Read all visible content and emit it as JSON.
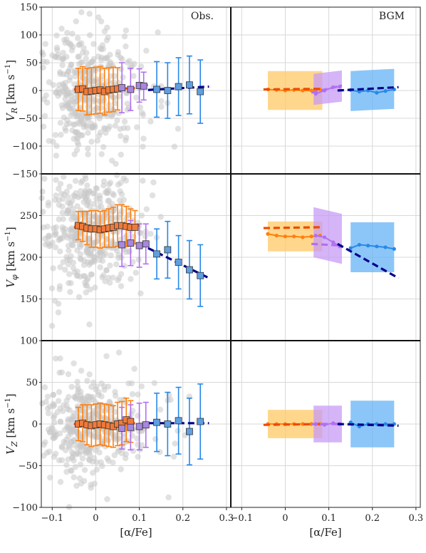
{
  "chart_data": {
    "type": "scatter",
    "panel_tags": [
      "Obs.",
      "BGM"
    ],
    "xlabel": "[α/Fe]",
    "xlim": [
      -0.125,
      0.31
    ],
    "xticks": [
      -0.1,
      0,
      0.1,
      0.2,
      0.3
    ],
    "xtick_labels": [
      "−0.1",
      "0",
      "0.1",
      "0.2",
      "0.3"
    ],
    "rows": [
      {
        "ylabel_symbol": "V",
        "ylabel_sub": "R",
        "ylabel_unit": "[km s",
        "ylim": [
          -150,
          150
        ],
        "yticks": [
          -150,
          -100,
          -50,
          0,
          50,
          100,
          150
        ],
        "ytick_labels": [
          "−150",
          "−100",
          "−50",
          "0",
          "50",
          "100",
          "150"
        ],
        "scatter_spread": 55,
        "obs": {
          "orange": {
            "x": [
              -0.04,
              -0.03,
              -0.02,
              -0.01,
              0.0,
              0.01,
              0.02,
              0.03,
              0.04,
              0.05
            ],
            "y": [
              2,
              3,
              -2,
              -1,
              0,
              1,
              -2,
              1,
              2,
              3
            ],
            "err": [
              38,
              40,
              42,
              42,
              42,
              42,
              42,
              40,
              40,
              38
            ]
          },
          "purple": {
            "x": [
              0.06,
              0.08,
              0.1,
              0.11
            ],
            "y": [
              5,
              2,
              9,
              8
            ],
            "err": [
              45,
              38,
              30,
              25
            ]
          },
          "blue": {
            "x": [
              0.14,
              0.165,
              0.19,
              0.215,
              0.24
            ],
            "y": [
              2,
              0,
              7,
              10,
              -2
            ],
            "err": [
              50,
              50,
              52,
              52,
              57
            ]
          },
          "fit_orange": {
            "x": [
              -0.05,
              0.09
            ],
            "y": [
              2,
              4
            ]
          },
          "fit_purple": {
            "x": [
              0.05,
              0.12
            ],
            "y": [
              0,
              10
            ]
          },
          "fit_navy": {
            "x": [
              0.12,
              0.26
            ],
            "y": [
              1,
              7
            ]
          }
        },
        "bgm": {
          "orange_band": {
            "x": [
              -0.04,
              0.085
            ],
            "y": [
              0,
              0
            ],
            "half": 35
          },
          "purple_band": {
            "x": [
              0.065,
              0.13
            ],
            "y": [
              2,
              8
            ],
            "half": 28
          },
          "blue_band": {
            "x": [
              0.15,
              0.25
            ],
            "y": [
              -1,
              3
            ],
            "half": 36
          },
          "orange_line": {
            "x": [
              -0.04,
              -0.02,
              0.0,
              0.02,
              0.04,
              0.06,
              0.08
            ],
            "y": [
              2,
              1,
              0,
              1,
              0,
              0,
              2
            ]
          },
          "purple_line": {
            "x": [
              0.07,
              0.09,
              0.11,
              0.125
            ],
            "y": [
              -6,
              0,
              6,
              7
            ]
          },
          "blue_line": {
            "x": [
              0.15,
              0.17,
              0.19,
              0.21,
              0.23,
              0.25
            ],
            "y": [
              1,
              -2,
              0,
              -4,
              -1,
              2
            ]
          },
          "fit_orange": {
            "x": [
              -0.05,
              0.08
            ],
            "y": [
              2,
              3
            ]
          },
          "fit_purple": {
            "x": [
              0.06,
              0.13
            ],
            "y": [
              -4,
              9
            ]
          },
          "fit_navy": {
            "x": [
              0.12,
              0.26
            ],
            "y": [
              0,
              6
            ]
          }
        }
      },
      {
        "ylabel_symbol": "V",
        "ylabel_sub": "φ",
        "ylabel_unit": "[km s",
        "ylim": [
          100,
          300
        ],
        "yticks": [
          150,
          200,
          250
        ],
        "ytick_labels": [
          "150",
          "200",
          "250"
        ],
        "scatter_spread": 35,
        "obs": {
          "orange": {
            "x": [
              -0.04,
              -0.03,
              -0.02,
              -0.01,
              0.0,
              0.01,
              0.02,
              0.03,
              0.04,
              0.05,
              0.06,
              0.07,
              0.08,
              0.09
            ],
            "y": [
              238,
              237,
              235,
              234,
              234,
              233,
              234,
              235,
              236,
              238,
              238,
              237,
              236,
              236
            ],
            "err": [
              17,
              18,
              20,
              22,
              22,
              22,
              22,
              23,
              24,
              25,
              25,
              24,
              22,
              20
            ]
          },
          "purple": {
            "x": [
              0.06,
              0.08,
              0.1,
              0.115
            ],
            "y": [
              215,
              217,
              214,
              216
            ],
            "err": [
              26,
              27,
              26,
              24
            ]
          },
          "blue": {
            "x": [
              0.14,
              0.165,
              0.19,
              0.215,
              0.24
            ],
            "y": [
              204,
              209,
              194,
              185,
              178
            ],
            "err": [
              30,
              34,
              32,
              35,
              37
            ]
          },
          "fit_orange": {
            "x": [
              -0.05,
              0.1
            ],
            "y": [
              236,
              238
            ]
          },
          "fit_purple": {
            "x": [
              0.05,
              0.12
            ],
            "y": [
              218,
              216
            ]
          },
          "fit_navy": {
            "x": [
              0.12,
              0.26
            ],
            "y": [
              211,
              175
            ]
          }
        },
        "bgm": {
          "orange_band": {
            "x": [
              -0.04,
              0.085
            ],
            "y": [
              225,
              225
            ],
            "half": 18
          },
          "purple_band": {
            "x": [
              0.065,
              0.13
            ],
            "y": [
              230,
              222
            ],
            "half": 30
          },
          "blue_band": {
            "x": [
              0.15,
              0.25
            ],
            "y": [
              212,
              212
            ],
            "half": 30
          },
          "orange_line": {
            "x": [
              -0.04,
              -0.02,
              0.0,
              0.02,
              0.04,
              0.06,
              0.08
            ],
            "y": [
              228,
              226,
              225,
              225,
              224,
              225,
              226
            ]
          },
          "purple_line": {
            "x": [
              0.07,
              0.09,
              0.11,
              0.125
            ],
            "y": [
              226,
              224,
              218,
              213
            ]
          },
          "blue_line": {
            "x": [
              0.15,
              0.17,
              0.19,
              0.21,
              0.23,
              0.25
            ],
            "y": [
              211,
              215,
              214,
              213,
              212,
              210
            ]
          },
          "fit_orange": {
            "x": [
              -0.05,
              0.08
            ],
            "y": [
              235,
              236
            ]
          },
          "fit_purple": {
            "x": [
              0.06,
              0.13
            ],
            "y": [
              216,
              214
            ]
          },
          "fit_navy": {
            "x": [
              0.12,
              0.26
            ],
            "y": [
              216,
              175
            ]
          }
        }
      },
      {
        "ylabel_symbol": "V",
        "ylabel_sub": "Z",
        "ylabel_unit": "[km s",
        "ylim": [
          -100,
          100
        ],
        "yticks": [
          -100,
          -50,
          0,
          50,
          100
        ],
        "ytick_labels": [
          "−100",
          "−50",
          "0",
          "50",
          "100"
        ],
        "scatter_spread": 30,
        "obs": {
          "orange": {
            "x": [
              -0.04,
              -0.03,
              -0.02,
              -0.01,
              0.0,
              0.01,
              0.02,
              0.03,
              0.04,
              0.05,
              0.06,
              0.07,
              0.08
            ],
            "y": [
              0,
              1,
              -1,
              -2,
              -1,
              0,
              -1,
              -2,
              -3,
              0,
              1,
              5,
              3
            ],
            "err": [
              20,
              22,
              24,
              25,
              25,
              25,
              25,
              25,
              25,
              26,
              26,
              26,
              25
            ]
          },
          "purple": {
            "x": [
              0.06,
              0.08,
              0.1,
              0.115
            ],
            "y": [
              -5,
              -4,
              -3,
              -1
            ],
            "err": [
              25,
              27,
              28,
              27
            ]
          },
          "blue": {
            "x": [
              0.14,
              0.165,
              0.19,
              0.215,
              0.24
            ],
            "y": [
              2,
              0,
              4,
              -9,
              3
            ],
            "err": [
              35,
              38,
              40,
              40,
              45
            ]
          },
          "fit_orange": {
            "x": [
              -0.05,
              0.09
            ],
            "y": [
              0,
              1
            ]
          },
          "fit_purple": {
            "x": [
              0.05,
              0.12
            ],
            "y": [
              -3,
              0
            ]
          },
          "fit_navy": {
            "x": [
              0.12,
              0.26
            ],
            "y": [
              1,
              1
            ]
          }
        },
        "bgm": {
          "orange_band": {
            "x": [
              -0.04,
              0.085
            ],
            "y": [
              0,
              0
            ],
            "half": 17
          },
          "purple_band": {
            "x": [
              0.065,
              0.13
            ],
            "y": [
              0,
              0
            ],
            "half": 22
          },
          "blue_band": {
            "x": [
              0.15,
              0.25
            ],
            "y": [
              0,
              0
            ],
            "half": 28
          },
          "orange_line": {
            "x": [
              -0.04,
              -0.02,
              0.0,
              0.02,
              0.04,
              0.06,
              0.08
            ],
            "y": [
              0,
              0,
              0,
              0,
              0,
              0,
              0
            ]
          },
          "purple_line": {
            "x": [
              0.07,
              0.09,
              0.11,
              0.125
            ],
            "y": [
              0,
              -1,
              1,
              0
            ]
          },
          "blue_line": {
            "x": [
              0.15,
              0.17,
              0.19,
              0.21,
              0.23,
              0.25
            ],
            "y": [
              2,
              -3,
              0,
              0,
              0,
              0
            ]
          },
          "fit_orange": {
            "x": [
              -0.05,
              0.08
            ],
            "y": [
              -1,
              0
            ]
          },
          "fit_purple": {
            "x": [
              0.06,
              0.13
            ],
            "y": [
              0,
              0
            ]
          },
          "fit_navy": {
            "x": [
              0.12,
              0.26
            ],
            "y": [
              0,
              -2
            ]
          }
        }
      }
    ],
    "colors": {
      "scatter": "#c9c9c9",
      "orange": "#ff7f0e",
      "orange_fit": "#ee4a00",
      "orange_marker": "#f07a3a",
      "purple": "#b070f0",
      "purple_marker": "#a887de",
      "blue": "#2888e8",
      "blue_marker": "#5f9fe0",
      "navy": "#00008b",
      "orange_band": "#ffc966",
      "purple_band": "#c79bf5",
      "blue_band": "#66b3f5",
      "grid": "#d8d8d8"
    }
  }
}
